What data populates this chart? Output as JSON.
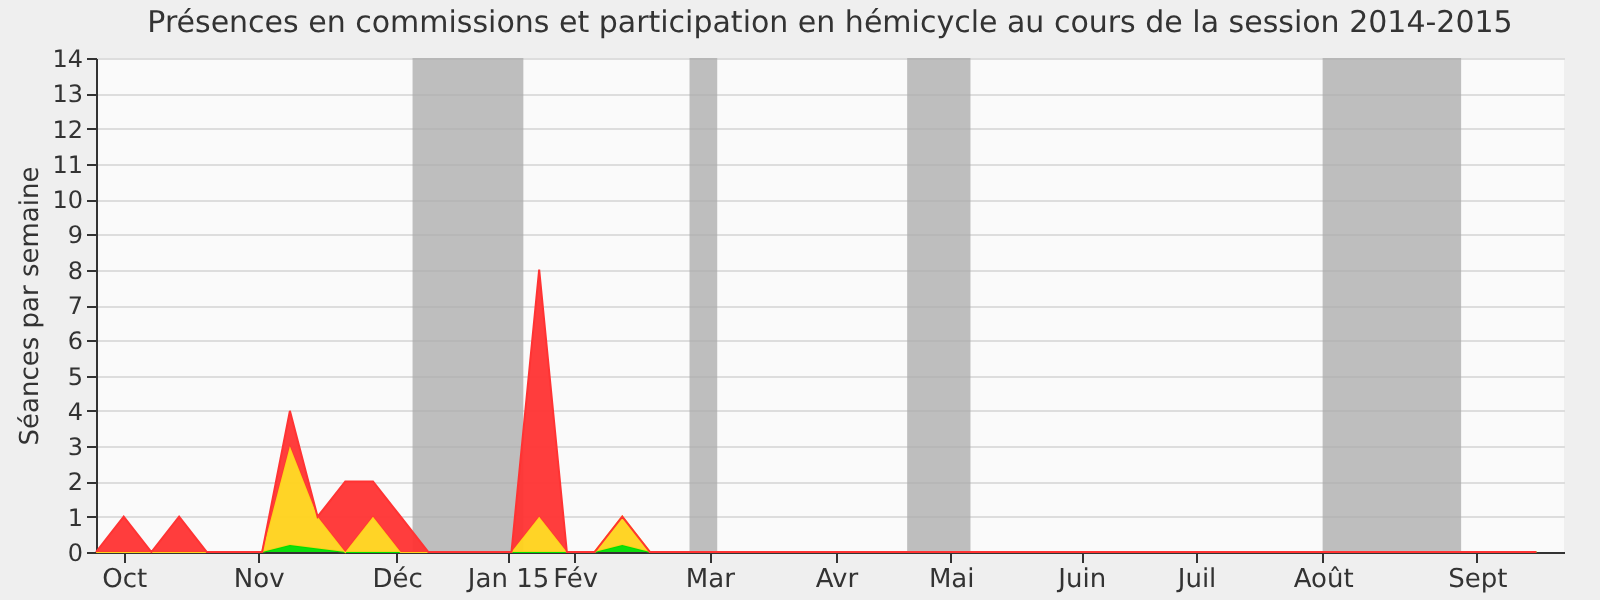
{
  "chart_data": {
    "type": "area",
    "title": "Présences en commissions et participation en hémicycle au cours de la session 2014-2015",
    "ylabel": "Séances par semaine",
    "x": [
      "2014-09-29",
      "2014-10-06",
      "2014-10-13",
      "2014-10-20",
      "2014-10-27",
      "2014-11-03",
      "2014-11-10",
      "2014-11-17",
      "2014-11-24",
      "2014-12-01",
      "2014-12-08",
      "2014-12-15",
      "2014-12-22",
      "2014-12-29",
      "2015-01-05",
      "2015-01-12",
      "2015-01-19",
      "2015-01-26",
      "2015-02-02",
      "2015-02-09",
      "2015-02-16",
      "2015-02-23",
      "2015-03-02",
      "2015-03-09",
      "2015-03-16",
      "2015-03-23",
      "2015-03-30",
      "2015-04-06",
      "2015-04-13",
      "2015-04-20",
      "2015-04-27",
      "2015-05-04",
      "2015-05-11",
      "2015-05-18",
      "2015-05-25",
      "2015-06-01",
      "2015-06-08",
      "2015-06-15",
      "2015-06-22",
      "2015-06-29",
      "2015-07-06",
      "2015-07-13",
      "2015-07-20",
      "2015-07-27",
      "2015-08-03",
      "2015-08-10",
      "2015-08-17",
      "2015-08-24",
      "2015-08-31",
      "2015-09-07",
      "2015-09-14",
      "2015-09-21",
      "2015-09-28"
    ],
    "stacked": true,
    "series": [
      {
        "color": "#00dd00",
        "values": [
          0,
          0,
          0,
          0,
          0,
          0,
          0,
          0.2,
          0.1,
          0,
          0,
          0,
          0,
          0,
          0,
          0,
          0,
          0,
          0,
          0.2,
          0,
          0,
          0,
          0,
          0,
          0,
          0,
          0,
          0,
          0,
          0,
          0,
          0,
          0,
          0,
          0,
          0,
          0,
          0,
          0,
          0,
          0,
          0,
          0,
          0,
          0,
          0,
          0,
          0,
          0,
          0,
          0,
          0
        ]
      },
      {
        "color": "#ffd21a",
        "values": [
          0,
          0,
          0,
          0,
          0,
          0,
          0,
          2.8,
          0.9,
          0,
          1,
          0,
          0,
          0,
          0,
          0,
          1,
          0,
          0,
          0.8,
          0,
          0,
          0,
          0,
          0,
          0,
          0,
          0,
          0,
          0,
          0,
          0,
          0,
          0,
          0,
          0,
          0,
          0,
          0,
          0,
          0,
          0,
          0,
          0,
          0,
          0,
          0,
          0,
          0,
          0,
          0,
          0,
          0
        ]
      },
      {
        "color": "#ff3333",
        "values": [
          0,
          1,
          0,
          1,
          0,
          0,
          0,
          1,
          0,
          2,
          1,
          1,
          0,
          0,
          0,
          0,
          7,
          0,
          0,
          0,
          0,
          0,
          0,
          0,
          0,
          0,
          0,
          0,
          0,
          0,
          0,
          0,
          0,
          0,
          0,
          0,
          0,
          0,
          0,
          0,
          0,
          0,
          0,
          0,
          0,
          0,
          0,
          0,
          0,
          0,
          0,
          0,
          0
        ]
      }
    ],
    "xlim": [
      "2014-09-29",
      "2015-10-05"
    ],
    "xticks": [
      {
        "value": "2014-10-06",
        "label": "Oct"
      },
      {
        "value": "2014-11-09",
        "label": "Nov"
      },
      {
        "value": "2014-12-14",
        "label": "Déc"
      },
      {
        "value": "2015-01-11",
        "label": "Jan 15"
      },
      {
        "value": "2015-01-28",
        "label": "Fév"
      },
      {
        "value": "2015-03-03",
        "label": "Mar"
      },
      {
        "value": "2015-04-04",
        "label": "Avr"
      },
      {
        "value": "2015-05-03",
        "label": "Mai"
      },
      {
        "value": "2015-06-05",
        "label": "Juin"
      },
      {
        "value": "2015-07-04",
        "label": "Juil"
      },
      {
        "value": "2015-08-05",
        "label": "Août"
      },
      {
        "value": "2015-09-13",
        "label": "Sept"
      }
    ],
    "ylim": [
      0,
      14
    ],
    "yticks": [
      0,
      1,
      2,
      3,
      4,
      5,
      6,
      7,
      8,
      9,
      10,
      11,
      12,
      13,
      14
    ],
    "bands": [
      {
        "axis": "x",
        "from": "2014-12-18",
        "to": "2015-01-15",
        "color": "#aaaaaa"
      },
      {
        "axis": "x",
        "from": "2015-02-26",
        "to": "2015-03-05",
        "color": "#aaaaaa"
      },
      {
        "axis": "x",
        "from": "2015-04-22",
        "to": "2015-05-08",
        "color": "#aaaaaa"
      },
      {
        "axis": "x",
        "from": "2015-08-05",
        "to": "2015-09-09",
        "color": "#aaaaaa"
      }
    ],
    "grid": "y"
  }
}
